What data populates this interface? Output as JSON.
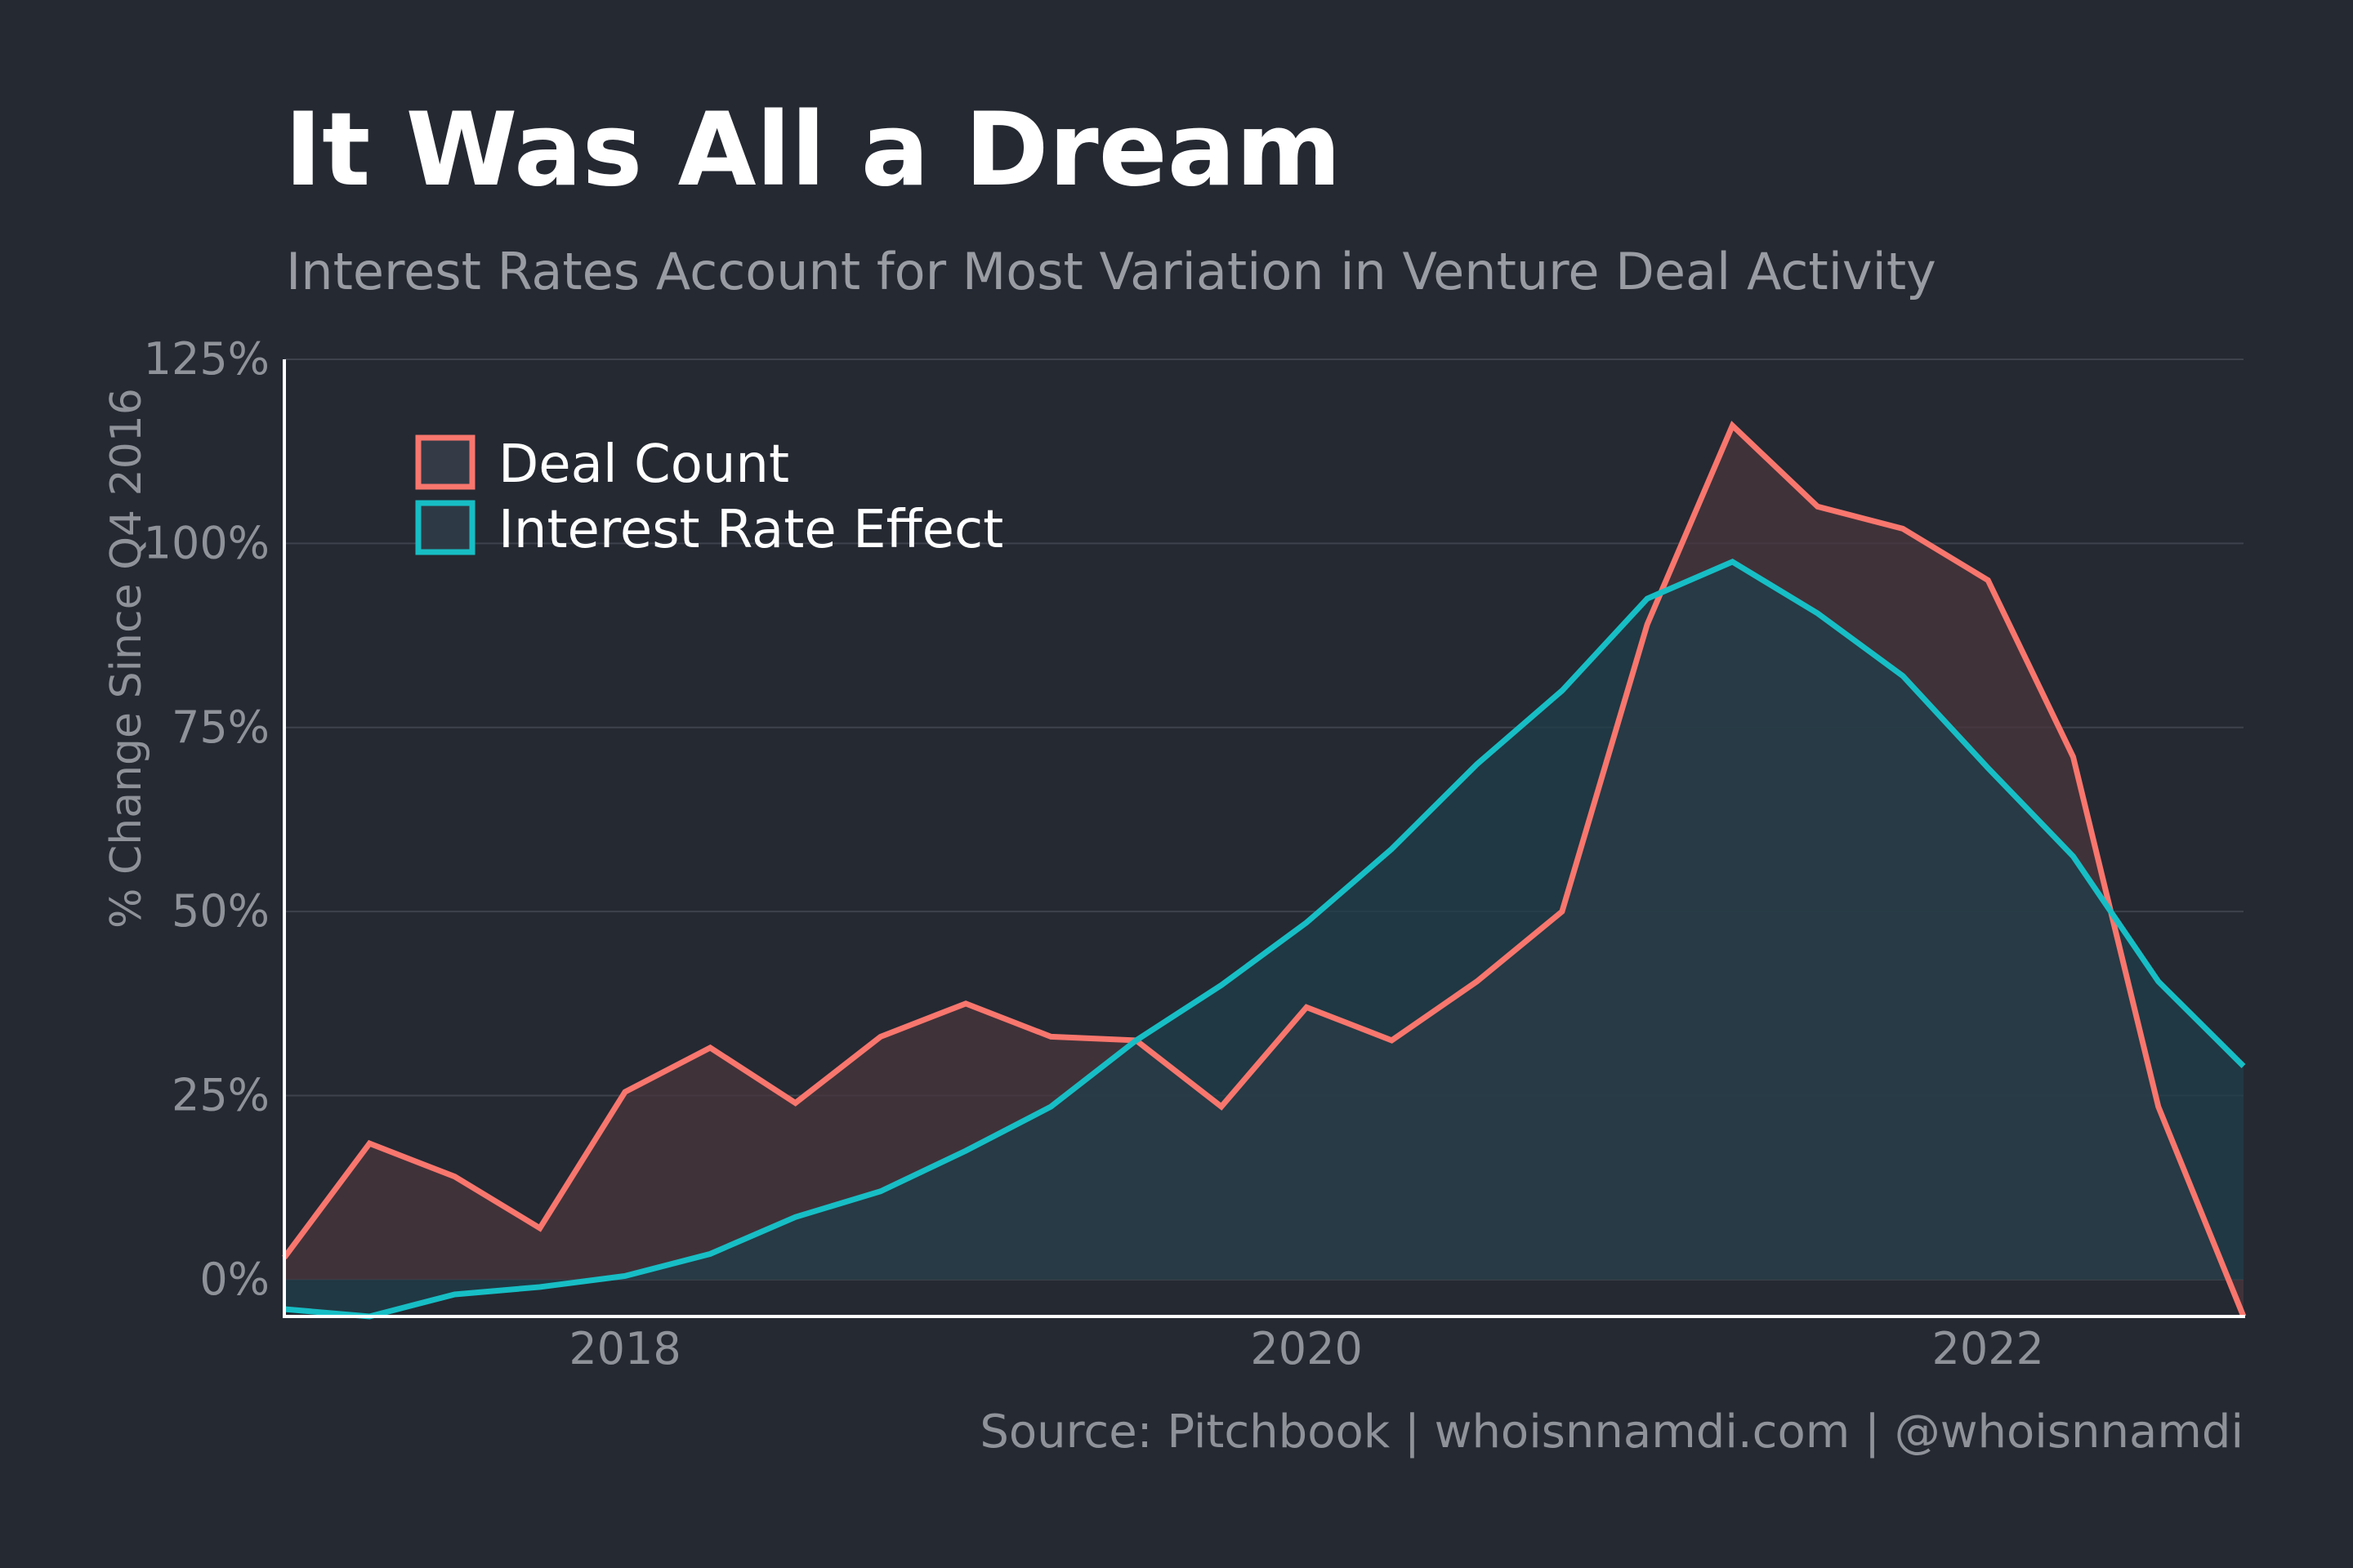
{
  "chart_data": {
    "type": "area",
    "title": "It Was All a Dream",
    "subtitle": "Interest Rates Account for Most Variation in Venture Deal Activity",
    "ylabel": "% Change Since Q4 2016",
    "xlabel": "",
    "caption": "Source: Pitchbook | whoisnnamdi.com | @whoisnnamdi",
    "x": [
      2017.0,
      2017.25,
      2017.5,
      2017.75,
      2018.0,
      2018.25,
      2018.5,
      2018.75,
      2019.0,
      2019.25,
      2019.5,
      2019.75,
      2020.0,
      2020.25,
      2020.5,
      2020.75,
      2021.0,
      2021.25,
      2021.5,
      2021.75,
      2022.0,
      2022.25,
      2022.5,
      2022.75
    ],
    "xlim": [
      2017.0,
      2022.75
    ],
    "ylim": [
      -5,
      125
    ],
    "y_ticks": [
      0,
      25,
      50,
      75,
      100,
      125
    ],
    "y_tick_labels": [
      "0%",
      "25%",
      "50%",
      "75%",
      "100%",
      "125%"
    ],
    "x_ticks": [
      2018,
      2020,
      2022
    ],
    "x_tick_labels": [
      "2018",
      "2020",
      "2022"
    ],
    "grid": true,
    "legend_position": "top-left",
    "series": [
      {
        "name": "Deal Count",
        "color": "#f8766d",
        "fill": "#4a363c",
        "values": [
          3,
          18.5,
          14,
          7,
          25.5,
          31.5,
          24,
          33,
          37.5,
          33,
          32.5,
          23.5,
          37,
          32.5,
          40.5,
          50,
          89,
          116,
          105,
          102,
          95,
          71,
          23.5,
          -5
        ]
      },
      {
        "name": "Interest Rate Effect",
        "color": "#17bec5",
        "fill": "#1f3e4a",
        "values": [
          -4,
          -5,
          -2,
          -1,
          0.5,
          3.5,
          8.5,
          12,
          17.5,
          23.5,
          32.5,
          40,
          48.5,
          58.5,
          70,
          80,
          92.5,
          97.5,
          90.5,
          82,
          69.5,
          57.5,
          40.5,
          29
        ]
      }
    ]
  }
}
